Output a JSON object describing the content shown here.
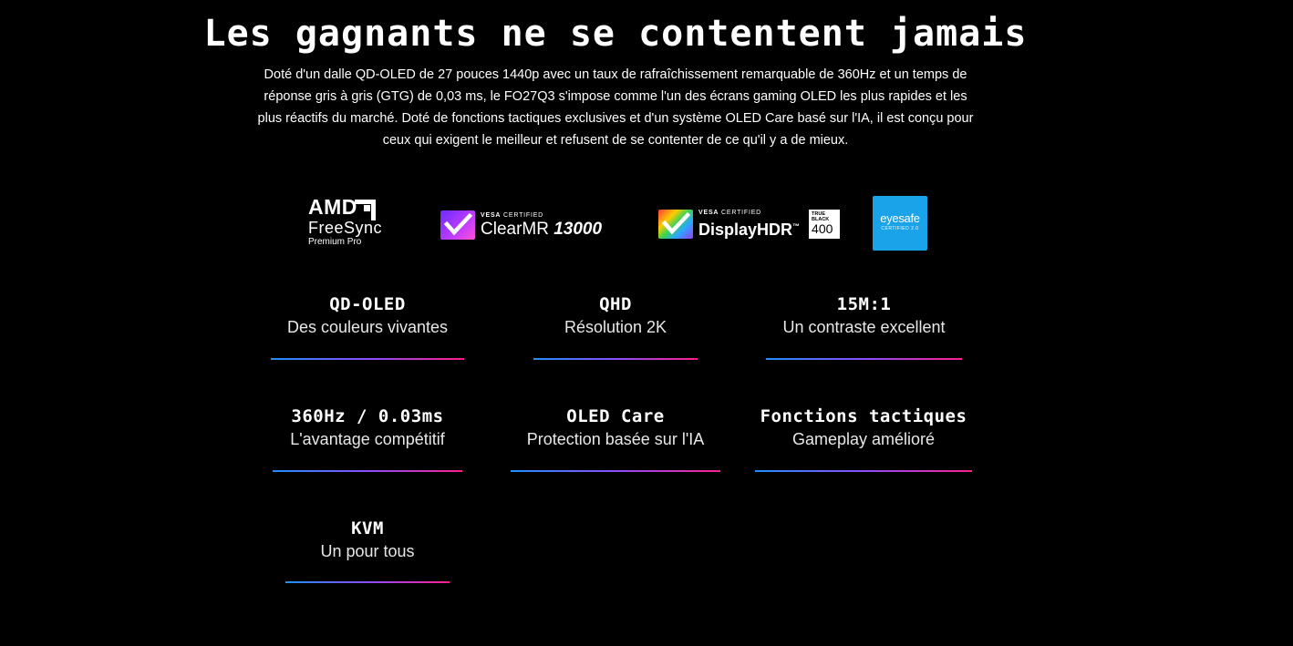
{
  "headline": "Les gagnants ne se contentent jamais",
  "intro": "Doté d'un dalle QD-OLED de 27 pouces 1440p avec un taux de rafraîchissement remarquable de 360Hz et un temps de réponse gris à gris (GTG) de 0,03 ms, le FO27Q3 s'impose comme l'un des écrans gaming OLED les plus rapides et les plus réactifs du marché. Doté de fonctions tactiques exclusives et d'un système OLED Care basé sur l'IA, il est conçu pour ceux qui exigent le meilleur et refusent de se contenter de ce qu'il y a de mieux.",
  "logos": {
    "amd": {
      "brand": "AMD",
      "line1": "FreeSync",
      "line2": "Premium Pro"
    },
    "clearmr": {
      "vesa": "VESA",
      "certified": "CERTIFIED",
      "name": "ClearMR",
      "value": "13000",
      "icon": "check-icon"
    },
    "displayhdr": {
      "vesa": "VESA",
      "certified": "CERTIFIED",
      "name": "DisplayHDR",
      "tm": "™",
      "badge_line1": "TRUE",
      "badge_line2": "BLACK",
      "badge_value": "400",
      "icon": "check-icon"
    },
    "eyesafe": {
      "name": "eyesafe",
      "sub": "CERTIFIED 2.0"
    }
  },
  "features": [
    {
      "title": "QD-OLED",
      "subtitle": "Des couleurs vivantes"
    },
    {
      "title": "QHD",
      "subtitle": "Résolution 2K"
    },
    {
      "title": "15M:1",
      "subtitle": "Un contraste excellent"
    },
    {
      "title": "360Hz / 0.03ms",
      "subtitle": "L'avantage compétitif"
    },
    {
      "title": "OLED Care",
      "subtitle": "Protection basée sur l'IA"
    },
    {
      "title": "Fonctions tactiques",
      "subtitle": "Gameplay amélioré"
    },
    {
      "title": "KVM",
      "subtitle": "Un pour tous"
    }
  ],
  "colors": {
    "background": "#000000",
    "bar_start": "#1e90ff",
    "bar_end": "#ff1e8c",
    "eyesafe_blue": "#1aa3e8"
  }
}
